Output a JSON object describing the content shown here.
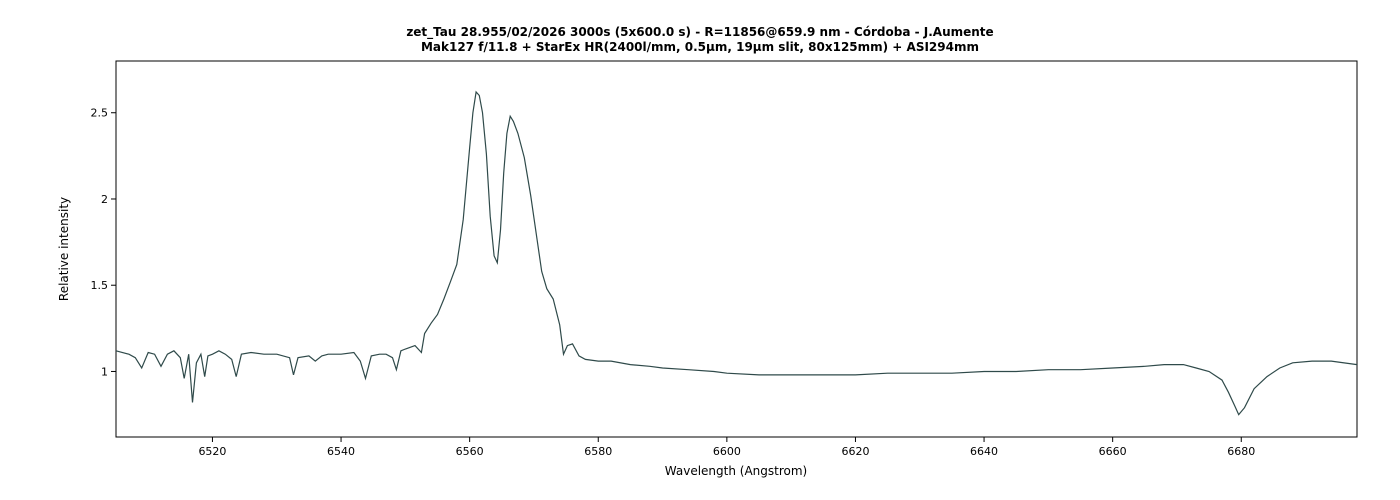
{
  "chart_data": {
    "type": "line",
    "title": "zet_Tau  28.955/02/2026 3000s (5x600.0 s)  - R=11856@659.9 nm - Córdoba - J.Aumente",
    "subtitle": "Mak127 f/11.8 + StarEx HR(2400l/mm, 0.5µm, 19µm slit, 80x125mm) + ASI294mm",
    "xlabel": "Wavelength (Angstrom)",
    "ylabel": "Relative intensity",
    "xlim": [
      6505,
      6698
    ],
    "ylim": [
      0.62,
      2.8
    ],
    "xticks": [
      6520,
      6540,
      6560,
      6580,
      6600,
      6620,
      6640,
      6660,
      6680
    ],
    "yticks": [
      1,
      1.5,
      2,
      2.5
    ],
    "ytick_labels": [
      "1",
      "1.5",
      "2",
      "2.5"
    ],
    "grid": false,
    "line_color": "#2f4a4a",
    "series": [
      {
        "x": [
          6505,
          6507,
          6508,
          6509,
          6510,
          6511,
          6512,
          6513,
          6514,
          6515,
          6515.6,
          6516.3,
          6516.9,
          6517.5,
          6518.2,
          6518.8,
          6519.3,
          6520,
          6521,
          6522,
          6523,
          6523.7,
          6524.5,
          6526,
          6528,
          6530,
          6532,
          6532.6,
          6533.3,
          6535,
          6536,
          6537,
          6538,
          6540,
          6542,
          6543,
          6543.8,
          6544.7,
          6546,
          6547,
          6548,
          6548.6,
          6549.3,
          6550,
          6551.5,
          6552.5,
          6553,
          6554,
          6555,
          6556,
          6557,
          6558,
          6559,
          6560,
          6560.5,
          6561,
          6561.5,
          6562,
          6562.6,
          6563.2,
          6563.8,
          6564.3,
          6564.8,
          6565.3,
          6565.8,
          6566.3,
          6566.8,
          6567.5,
          6568.5,
          6569.5,
          6570.5,
          6571.2,
          6572,
          6573,
          6574,
          6574.6,
          6575.2,
          6576,
          6577,
          6578,
          6580,
          6582,
          6585,
          6588,
          6590,
          6594,
          6598,
          6600,
          6605,
          6610,
          6615,
          6620,
          6625,
          6630,
          6635,
          6640,
          6645,
          6650,
          6655,
          6660,
          6665,
          6668,
          6671,
          6673,
          6675,
          6677,
          6678,
          6679,
          6679.6,
          6680.5,
          6682,
          6684,
          6686,
          6688,
          6691,
          6694,
          6698
        ],
        "y": [
          1.12,
          1.1,
          1.08,
          1.02,
          1.11,
          1.1,
          1.03,
          1.1,
          1.12,
          1.08,
          0.96,
          1.1,
          0.82,
          1.05,
          1.1,
          0.97,
          1.09,
          1.1,
          1.12,
          1.1,
          1.07,
          0.97,
          1.1,
          1.11,
          1.1,
          1.1,
          1.08,
          0.98,
          1.08,
          1.09,
          1.06,
          1.09,
          1.1,
          1.1,
          1.11,
          1.06,
          0.96,
          1.09,
          1.1,
          1.1,
          1.08,
          1.01,
          1.12,
          1.13,
          1.15,
          1.11,
          1.22,
          1.28,
          1.33,
          1.42,
          1.52,
          1.62,
          1.88,
          2.3,
          2.5,
          2.62,
          2.6,
          2.5,
          2.26,
          1.9,
          1.67,
          1.63,
          1.82,
          2.15,
          2.38,
          2.48,
          2.45,
          2.38,
          2.24,
          2.02,
          1.76,
          1.58,
          1.48,
          1.42,
          1.27,
          1.1,
          1.15,
          1.16,
          1.09,
          1.07,
          1.06,
          1.06,
          1.04,
          1.03,
          1.02,
          1.01,
          1.0,
          0.99,
          0.98,
          0.98,
          0.98,
          0.98,
          0.99,
          0.99,
          0.99,
          1.0,
          1.0,
          1.01,
          1.01,
          1.02,
          1.03,
          1.04,
          1.04,
          1.02,
          1.0,
          0.95,
          0.88,
          0.8,
          0.75,
          0.79,
          0.9,
          0.97,
          1.02,
          1.05,
          1.06,
          1.06,
          1.04
        ]
      }
    ]
  }
}
